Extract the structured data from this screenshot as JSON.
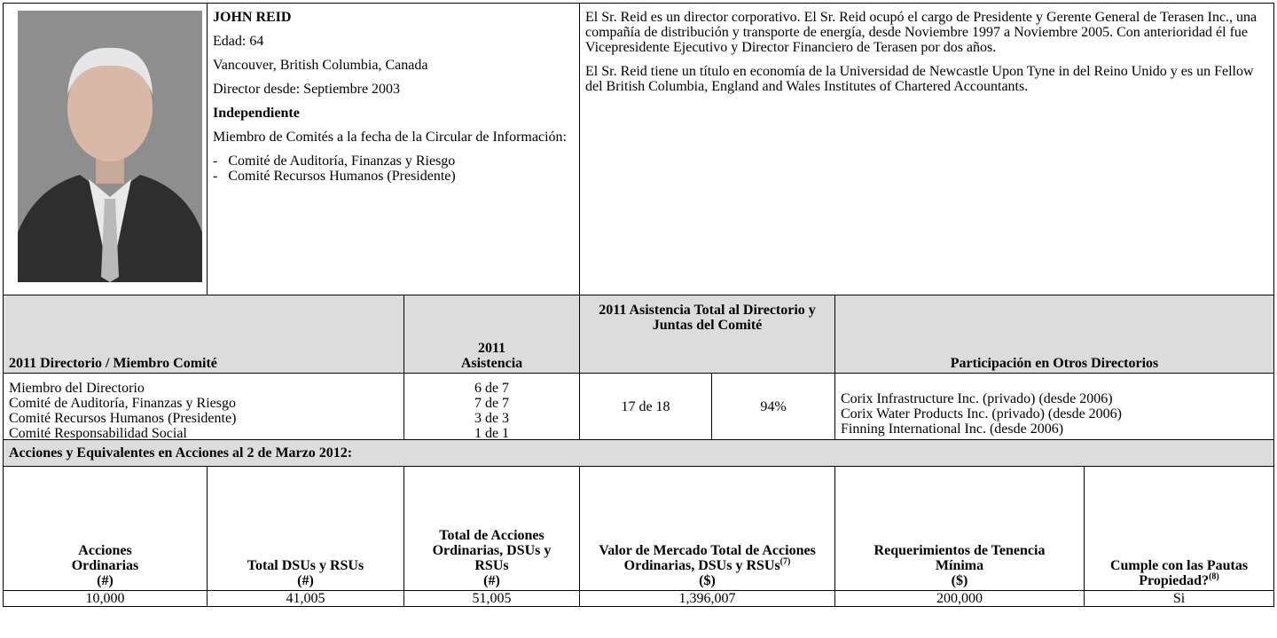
{
  "profile": {
    "name": "JOHN REID",
    "age": "Edad: 64",
    "location": "Vancouver, British Columbia, Canada",
    "director_since": "Director desde: Septiembre 2003",
    "status": "Independiente",
    "committees_heading": "Miembro de Comités a la fecha de la Circular de Información:",
    "committees": [
      "Comité de Auditoría, Finanzas y Riesgo",
      "Comité Recursos Humanos (Presidente)"
    ]
  },
  "bio": [
    "El Sr. Reid es un director corporativo. El Sr. Reid ocupó el cargo de Presidente y Gerente General de Terasen Inc., una compañía de distribución y transporte de energía, desde Noviembre 1997 a Noviembre 2005. Con anterioridad él fue Vicepresidente Ejecutivo y Director Financiero de Terasen por dos años.",
    "El Sr. Reid tiene un título en economía de la Universidad de Newcastle Upon Tyne in del Reino Unido y es un Fellow del British Columbia, England and Wales Institutes of Chartered Accountants."
  ],
  "attendance": {
    "headers": [
      "2011 Directorio / Miembro Comité",
      "2011 Asistencia",
      "2011 Asistencia Total al Directorio y Juntas del Comité",
      "Participación en Otros Directorios"
    ],
    "rows": [
      [
        "Miembro del Directorio",
        "6 de 7"
      ],
      [
        "Comité de Auditoría, Finanzas y Riesgo",
        "7 de 7"
      ],
      [
        "Comité Recursos Humanos (Presidente)",
        "3 de 3"
      ],
      [
        "Comité Responsabilidad Social",
        "1 de 1"
      ]
    ],
    "total": "17 de 18",
    "total_pct": "94%",
    "other_boards": [
      "Corix Infrastructure Inc. (privado) (desde 2006)",
      "Corix Water Products Inc. (privado) (desde 2006)",
      "Finning International Inc. (desde 2006)"
    ]
  },
  "holdings": {
    "title": "Acciones y Equivalentes en Acciones al 2 de Marzo 2012:",
    "headers": [
      {
        "label": "Acciones Ordinarias",
        "unit": "(#)"
      },
      {
        "label": "Total DSUs y RSUs",
        "unit": "(#)"
      },
      {
        "label": "Total de Acciones Ordinarias, DSUs y RSUs",
        "unit": "(#)"
      },
      {
        "label": "Valor de Mercado Total de Acciones Ordinarias, DSUs y RSUs",
        "note": "(7)",
        "unit": "($)"
      },
      {
        "label": "Requerimientos de Tenencia Mínima",
        "unit": "($)"
      },
      {
        "label": "Cumple con las Pautas Propiedad?",
        "note": "(8)"
      }
    ],
    "values": [
      "10,000",
      "41,005",
      "51,005",
      "1,396,007",
      "200,000",
      "Si"
    ]
  }
}
